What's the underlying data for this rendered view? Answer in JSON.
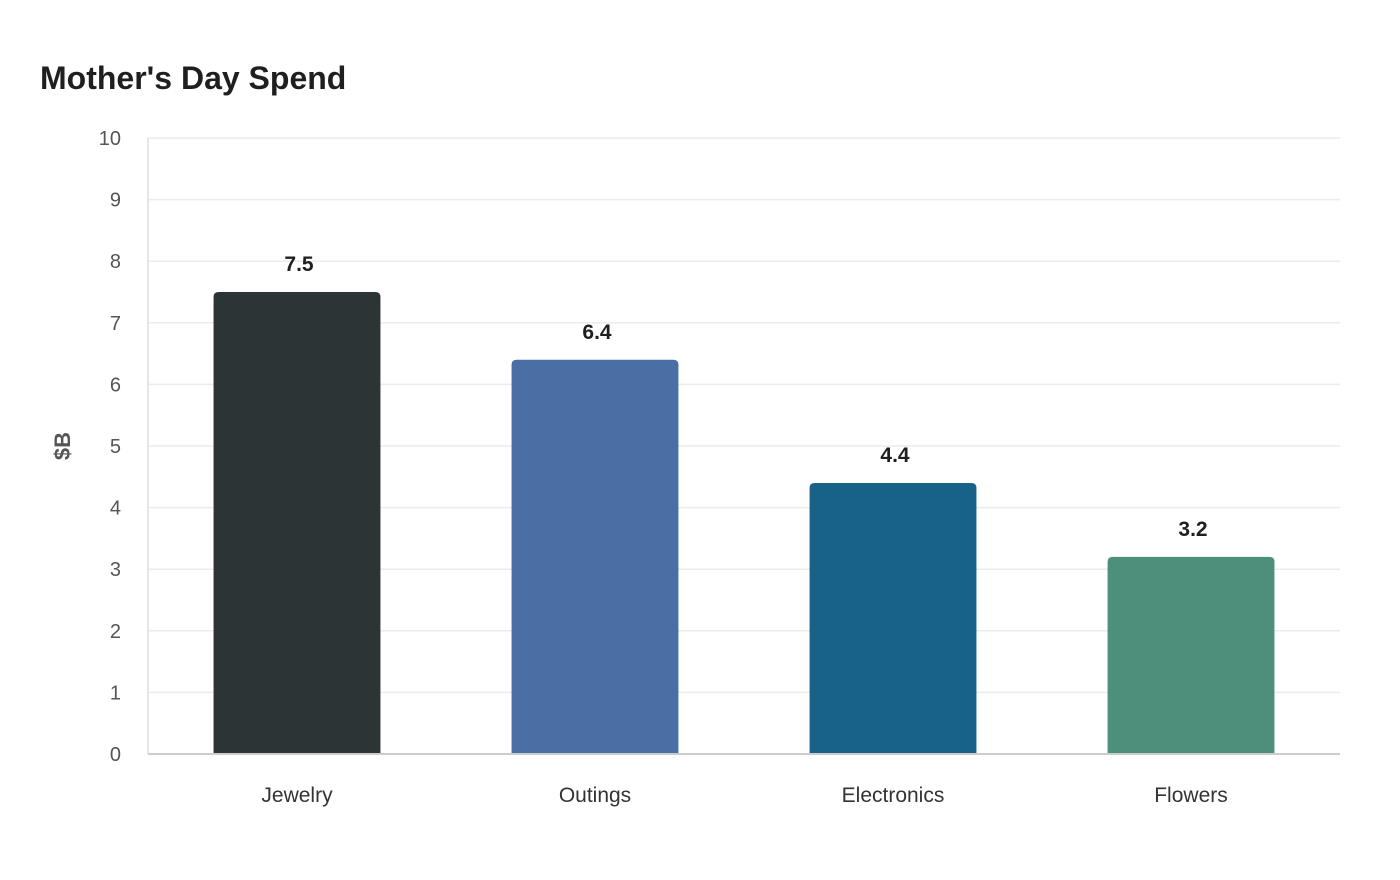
{
  "chart_data": {
    "type": "bar",
    "title": "Mother's Day Spend",
    "xlabel": "",
    "ylabel": "$B",
    "categories": [
      "Jewelry",
      "Outings",
      "Electronics",
      "Flowers"
    ],
    "values": [
      7.5,
      6.4,
      4.4,
      3.2
    ],
    "value_labels": [
      "7.5",
      "6.4",
      "4.4",
      "3.2"
    ],
    "colors": [
      "#2d3436",
      "#4a6fa5",
      "#186287",
      "#4e8f7b"
    ],
    "ylim": [
      0,
      10
    ],
    "yticks": [
      0,
      1,
      2,
      3,
      4,
      5,
      6,
      7,
      8,
      9,
      10
    ],
    "grid": true,
    "legend": "none"
  }
}
